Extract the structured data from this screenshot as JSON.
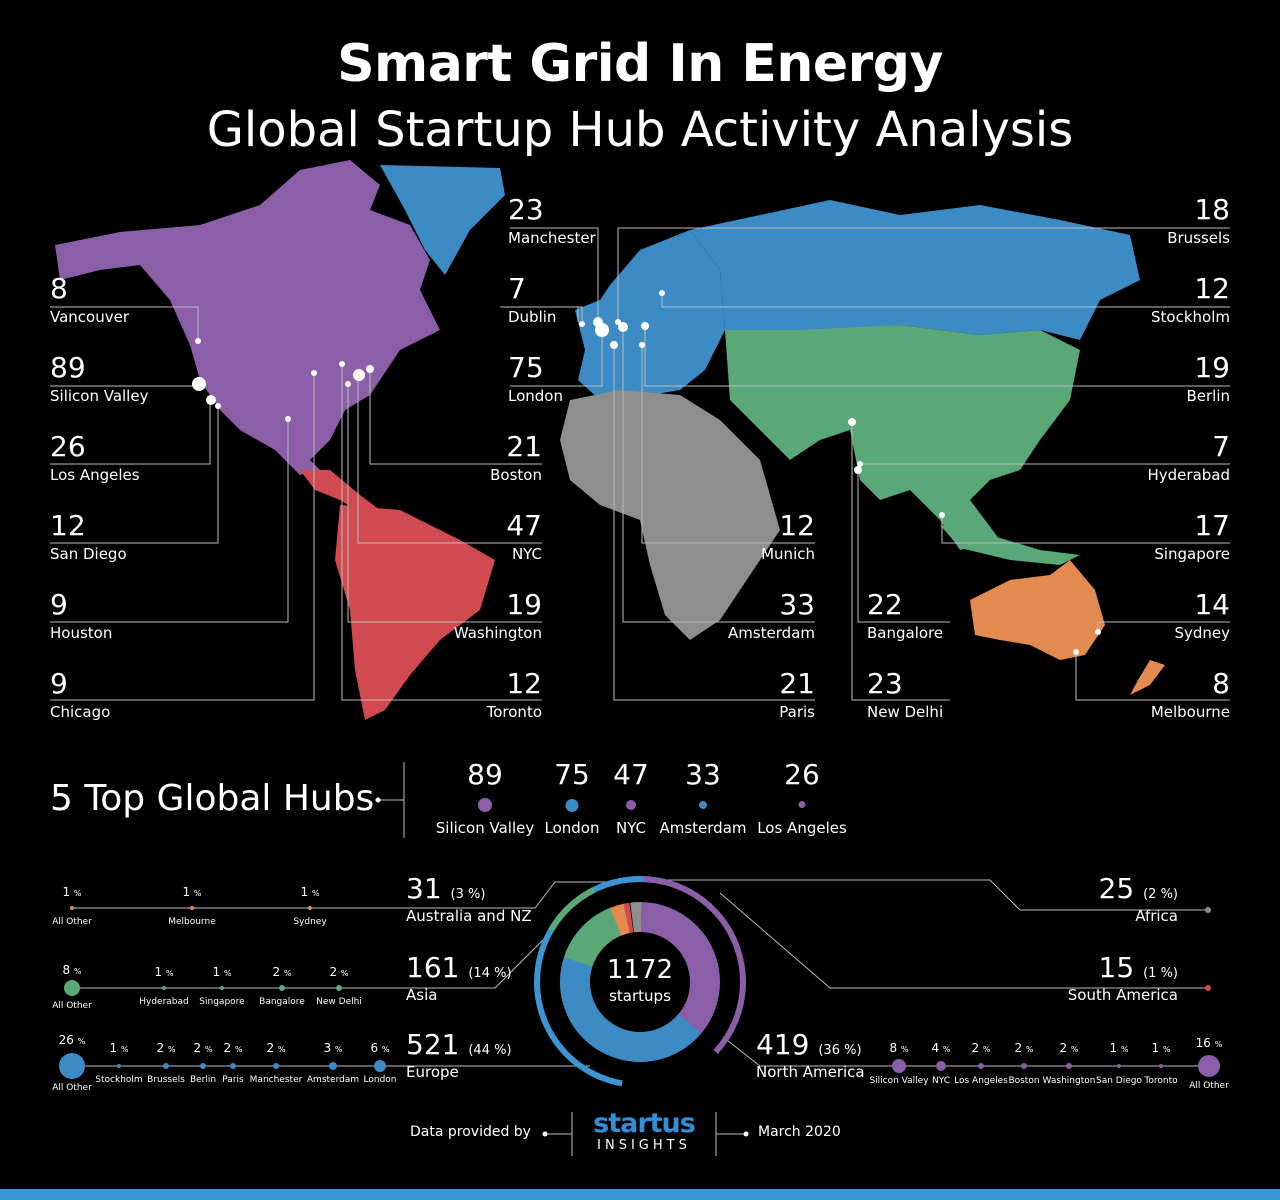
{
  "title": "Smart Grid In Energy",
  "subtitle": "Global Startup Hub Activity Analysis",
  "colors": {
    "north_america": "#8a5fa8",
    "europe": "#3c8bc4",
    "asia": "#5aa878",
    "africa": "#8e8e8e",
    "south_america": "#d04a50",
    "australia": "#e28a50",
    "line": "#aaaaaa"
  },
  "hubs_left": [
    {
      "value": "8",
      "city": "Vancouver"
    },
    {
      "value": "89",
      "city": "Silicon Valley"
    },
    {
      "value": "26",
      "city": "Los Angeles"
    },
    {
      "value": "12",
      "city": "San Diego"
    },
    {
      "value": "9",
      "city": "Houston"
    },
    {
      "value": "9",
      "city": "Chicago"
    }
  ],
  "hubs_midleft": [
    {
      "value": "23",
      "city": "Manchester"
    },
    {
      "value": "7",
      "city": "Dublin"
    },
    {
      "value": "75",
      "city": "London"
    },
    {
      "value": "21",
      "city": "Boston"
    },
    {
      "value": "47",
      "city": "NYC"
    },
    {
      "value": "19",
      "city": "Washington"
    },
    {
      "value": "12",
      "city": "Toronto"
    }
  ],
  "hubs_mid": [
    {
      "value": "12",
      "city": "Munich"
    },
    {
      "value": "33",
      "city": "Amsterdam"
    },
    {
      "value": "21",
      "city": "Paris"
    }
  ],
  "hubs_midright": [
    {
      "value": "22",
      "city": "Bangalore"
    },
    {
      "value": "23",
      "city": "New Delhi"
    }
  ],
  "hubs_right": [
    {
      "value": "18",
      "city": "Brussels"
    },
    {
      "value": "12",
      "city": "Stockholm"
    },
    {
      "value": "19",
      "city": "Berlin"
    },
    {
      "value": "7",
      "city": "Hyderabad"
    },
    {
      "value": "17",
      "city": "Singapore"
    },
    {
      "value": "14",
      "city": "Sydney"
    },
    {
      "value": "8",
      "city": "Melbourne"
    }
  ],
  "top_hubs": {
    "title": "5 Top Global Hubs",
    "items": [
      {
        "value": "89",
        "city": "Silicon Valley",
        "color": "#8a5fa8"
      },
      {
        "value": "75",
        "city": "London",
        "color": "#3c8bc4"
      },
      {
        "value": "47",
        "city": "NYC",
        "color": "#8a5fa8"
      },
      {
        "value": "33",
        "city": "Amsterdam",
        "color": "#3c8bc4"
      },
      {
        "value": "26",
        "city": "Los Angeles",
        "color": "#8a5fa8"
      }
    ]
  },
  "center": {
    "total": "1172",
    "label": "startups"
  },
  "regions": {
    "australia": {
      "count": "31",
      "pct": "(3 %)",
      "name": "Australia and NZ",
      "sub": [
        {
          "pct": "1",
          "name": "All Other"
        },
        {
          "pct": "1",
          "name": "Melbourne"
        },
        {
          "pct": "1",
          "name": "Sydney"
        }
      ]
    },
    "asia": {
      "count": "161",
      "pct": "(14 %)",
      "name": "Asia",
      "sub": [
        {
          "pct": "8",
          "name": "All Other"
        },
        {
          "pct": "1",
          "name": "Hyderabad"
        },
        {
          "pct": "1",
          "name": "Singapore"
        },
        {
          "pct": "2",
          "name": "Bangalore"
        },
        {
          "pct": "2",
          "name": "New Delhi"
        }
      ]
    },
    "europe": {
      "count": "521",
      "pct": "(44 %)",
      "name": "Europe",
      "sub": [
        {
          "pct": "26",
          "name": "All Other"
        },
        {
          "pct": "1",
          "name": "Stockholm"
        },
        {
          "pct": "2",
          "name": "Brussels"
        },
        {
          "pct": "2",
          "name": "Berlin"
        },
        {
          "pct": "2",
          "name": "Paris"
        },
        {
          "pct": "2",
          "name": "Manchester"
        },
        {
          "pct": "3",
          "name": "Amsterdam"
        },
        {
          "pct": "6",
          "name": "London"
        }
      ]
    },
    "africa": {
      "count": "25",
      "pct": "(2 %)",
      "name": "Africa"
    },
    "south_america": {
      "count": "15",
      "pct": "(1 %)",
      "name": "South America"
    },
    "north_america": {
      "count": "419",
      "pct": "(36 %)",
      "name": "North America",
      "sub": [
        {
          "pct": "8",
          "name": "Silicon Valley"
        },
        {
          "pct": "4",
          "name": "NYC"
        },
        {
          "pct": "2",
          "name": "Los Angeles"
        },
        {
          "pct": "2",
          "name": "Boston"
        },
        {
          "pct": "2",
          "name": "Washington"
        },
        {
          "pct": "1",
          "name": "San Diego"
        },
        {
          "pct": "1",
          "name": "Toronto"
        },
        {
          "pct": "16",
          "name": "All Other"
        }
      ]
    }
  },
  "pct_symbol": "%",
  "footer": {
    "provided": "Data provided by",
    "logo_top": "startus",
    "logo_bottom": "INSIGHTS",
    "date": "March 2020"
  }
}
